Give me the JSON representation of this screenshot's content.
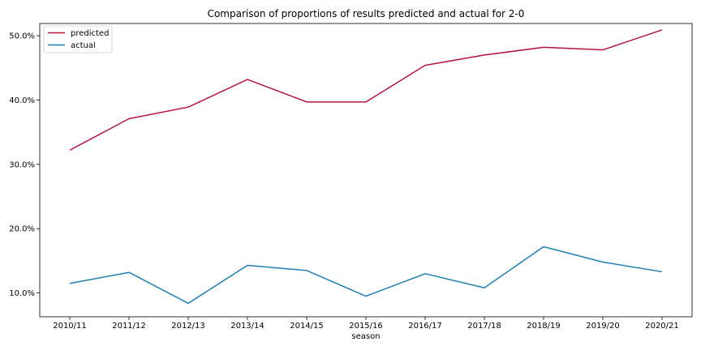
{
  "chart_data": {
    "type": "line",
    "title": "Comparison of proportions of results predicted and actual for 2-0",
    "xlabel": "season",
    "ylabel": "",
    "categories": [
      "2010/11",
      "2011/12",
      "2012/13",
      "2013/14",
      "2014/15",
      "2015/16",
      "2016/17",
      "2017/18",
      "2018/19",
      "2019/20",
      "2020/21"
    ],
    "y_ticks": [
      10.0,
      20.0,
      30.0,
      40.0,
      50.0
    ],
    "y_tick_labels": [
      "10.0%",
      "20.0%",
      "30.0%",
      "40.0%",
      "50.0%"
    ],
    "ylim": [
      6.3,
      51.9
    ],
    "grid": false,
    "legend_position": "upper-left",
    "series": [
      {
        "name": "predicted",
        "color": "#b5133c",
        "values": [
          32.2,
          37.1,
          38.9,
          43.2,
          39.7,
          39.7,
          45.4,
          47.0,
          48.2,
          47.8,
          50.9
        ]
      },
      {
        "name": "actual",
        "color": "#1f7fb5",
        "values": [
          11.5,
          13.2,
          8.4,
          14.3,
          13.5,
          9.5,
          13.0,
          10.8,
          17.2,
          14.8,
          13.3
        ]
      }
    ]
  }
}
